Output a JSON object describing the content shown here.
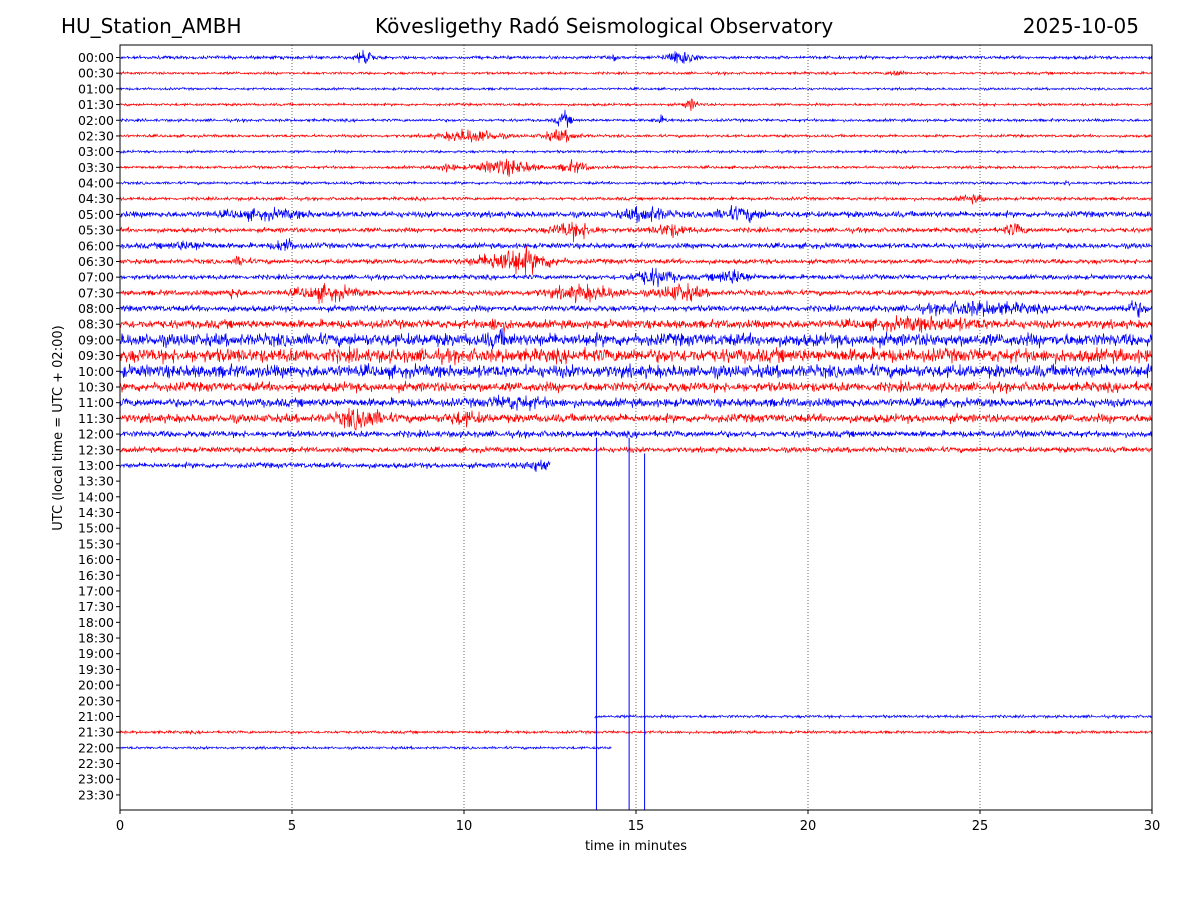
{
  "header": {
    "station": "HU_Station_AMBH",
    "observatory": "Kövesligethy Radó Seismological Observatory",
    "date": "2025-10-05"
  },
  "chart_data": {
    "type": "line",
    "xlabel": "time in minutes",
    "ylabel": "UTC (local time = UTC + 02:00)",
    "xlim": [
      0,
      30
    ],
    "x_ticks": [
      0,
      5,
      10,
      15,
      20,
      25,
      30
    ],
    "grid": "vertical dotted",
    "colors": [
      "#0000ff",
      "#ff0000"
    ],
    "rows": [
      {
        "label": "00:00",
        "end": 30,
        "amp": 1.5,
        "events": [
          [
            7.1,
            0.2,
            9
          ],
          [
            16.3,
            0.4,
            7
          ],
          [
            14.4,
            0.05,
            4
          ]
        ]
      },
      {
        "label": "00:30",
        "end": 30,
        "amp": 1.2,
        "events": [
          [
            22.6,
            0.2,
            3
          ]
        ]
      },
      {
        "label": "01:00",
        "end": 30,
        "amp": 1.1,
        "events": []
      },
      {
        "label": "01:30",
        "end": 30,
        "amp": 1.2,
        "events": [
          [
            16.6,
            0.2,
            5
          ]
        ]
      },
      {
        "label": "02:00",
        "end": 30,
        "amp": 1.3,
        "events": [
          [
            12.9,
            0.2,
            7
          ],
          [
            15.7,
            0.2,
            3
          ]
        ]
      },
      {
        "label": "02:30",
        "end": 30,
        "amp": 1.3,
        "events": [
          [
            10.2,
            0.8,
            6
          ],
          [
            12.8,
            0.5,
            5
          ]
        ]
      },
      {
        "label": "03:00",
        "end": 30,
        "amp": 1.2,
        "events": []
      },
      {
        "label": "03:30",
        "end": 30,
        "amp": 1.3,
        "events": [
          [
            11.2,
            0.8,
            7
          ],
          [
            13.2,
            0.4,
            5
          ],
          [
            9.5,
            0.3,
            3
          ]
        ]
      },
      {
        "label": "04:00",
        "end": 30,
        "amp": 1.3,
        "events": [
          [
            27.6,
            0.1,
            3
          ]
        ]
      },
      {
        "label": "04:30",
        "end": 30,
        "amp": 1.5,
        "events": [
          [
            24.8,
            0.4,
            3
          ]
        ]
      },
      {
        "label": "05:00",
        "end": 30,
        "amp": 2.8,
        "events": [
          [
            15.3,
            0.6,
            6
          ],
          [
            18.0,
            0.7,
            5
          ],
          [
            4.2,
            1.2,
            3
          ]
        ]
      },
      {
        "label": "05:30",
        "end": 30,
        "amp": 2.2,
        "events": [
          [
            13.2,
            0.6,
            7
          ],
          [
            16.0,
            0.5,
            5
          ],
          [
            26.0,
            0.3,
            5
          ]
        ]
      },
      {
        "label": "06:00",
        "end": 30,
        "amp": 2.5,
        "events": [
          [
            4.8,
            0.3,
            5
          ],
          [
            2.0,
            0.6,
            3
          ]
        ]
      },
      {
        "label": "06:30",
        "end": 30,
        "amp": 2.2,
        "events": [
          [
            11.5,
            1.0,
            11
          ],
          [
            3.5,
            0.2,
            4
          ]
        ]
      },
      {
        "label": "07:00",
        "end": 30,
        "amp": 2.2,
        "events": [
          [
            15.5,
            0.6,
            7
          ],
          [
            17.8,
            0.5,
            6
          ]
        ]
      },
      {
        "label": "07:30",
        "end": 30,
        "amp": 2.5,
        "events": [
          [
            6.0,
            0.8,
            6
          ],
          [
            13.5,
            1.0,
            6
          ],
          [
            16.3,
            0.6,
            7
          ],
          [
            3.3,
            0.2,
            4
          ]
        ]
      },
      {
        "label": "08:00",
        "end": 30,
        "amp": 2.8,
        "events": [
          [
            25.0,
            1.5,
            5
          ],
          [
            29.5,
            0.3,
            6
          ]
        ]
      },
      {
        "label": "08:30",
        "end": 30,
        "amp": 4.0,
        "events": [
          [
            23.5,
            1.5,
            4
          ],
          [
            11.0,
            0.3,
            4
          ]
        ]
      },
      {
        "label": "09:00",
        "end": 30,
        "amp": 6.0,
        "events": [
          [
            11.0,
            0.3,
            4
          ]
        ]
      },
      {
        "label": "09:30",
        "end": 30,
        "amp": 6.5,
        "events": []
      },
      {
        "label": "10:00",
        "end": 30,
        "amp": 6.0,
        "events": []
      },
      {
        "label": "10:30",
        "end": 30,
        "amp": 4.5,
        "events": []
      },
      {
        "label": "11:00",
        "end": 30,
        "amp": 4.0,
        "events": [
          [
            11.5,
            0.8,
            4
          ]
        ]
      },
      {
        "label": "11:30",
        "end": 30,
        "amp": 4.0,
        "events": [
          [
            7.0,
            0.6,
            8
          ],
          [
            10.0,
            0.5,
            4
          ]
        ]
      },
      {
        "label": "12:00",
        "end": 30,
        "amp": 3.0,
        "events": []
      },
      {
        "label": "12:30",
        "end": 30,
        "amp": 2.5,
        "events": []
      },
      {
        "label": "13:00",
        "end": 12.5,
        "amp": 2.5,
        "events": [
          [
            12.2,
            0.4,
            5
          ]
        ]
      },
      {
        "label": "13:30",
        "end": 0,
        "amp": 0,
        "events": []
      },
      {
        "label": "14:00",
        "end": 0,
        "amp": 0,
        "events": []
      },
      {
        "label": "14:30",
        "end": 0,
        "amp": 0,
        "events": []
      },
      {
        "label": "15:00",
        "end": 0,
        "amp": 0,
        "events": []
      },
      {
        "label": "15:30",
        "end": 0,
        "amp": 0,
        "events": []
      },
      {
        "label": "16:00",
        "end": 0,
        "amp": 0,
        "events": []
      },
      {
        "label": "16:30",
        "end": 0,
        "amp": 0,
        "events": []
      },
      {
        "label": "17:00",
        "end": 0,
        "amp": 0,
        "events": []
      },
      {
        "label": "17:30",
        "end": 0,
        "amp": 0,
        "events": []
      },
      {
        "label": "18:00",
        "end": 0,
        "amp": 0,
        "events": []
      },
      {
        "label": "18:30",
        "end": 0,
        "amp": 0,
        "events": []
      },
      {
        "label": "19:00",
        "end": 0,
        "amp": 0,
        "events": []
      },
      {
        "label": "19:30",
        "end": 0,
        "amp": 0,
        "events": []
      },
      {
        "label": "20:00",
        "end": 0,
        "amp": 0,
        "events": []
      },
      {
        "label": "20:30",
        "end": 0,
        "amp": 0,
        "events": []
      },
      {
        "label": "21:00",
        "end": 30,
        "start": 13.8,
        "amp": 1.3,
        "events": []
      },
      {
        "label": "21:30",
        "end": 30,
        "amp": 1.3,
        "events": []
      },
      {
        "label": "22:00",
        "end": 14.3,
        "amp": 1.2,
        "events": []
      },
      {
        "label": "22:30",
        "end": 0,
        "amp": 0,
        "events": []
      },
      {
        "label": "23:00",
        "end": 0,
        "amp": 0,
        "events": []
      },
      {
        "label": "23:30",
        "end": 0,
        "amp": 0,
        "events": []
      }
    ],
    "spikes": [
      {
        "x": 13.85,
        "from_row": "12:30",
        "to_row": "23:30"
      },
      {
        "x": 14.8,
        "from_row": "12:30",
        "to_row": "23:30"
      },
      {
        "x": 15.25,
        "from_row": "13:00",
        "to_row": "23:30"
      }
    ]
  }
}
